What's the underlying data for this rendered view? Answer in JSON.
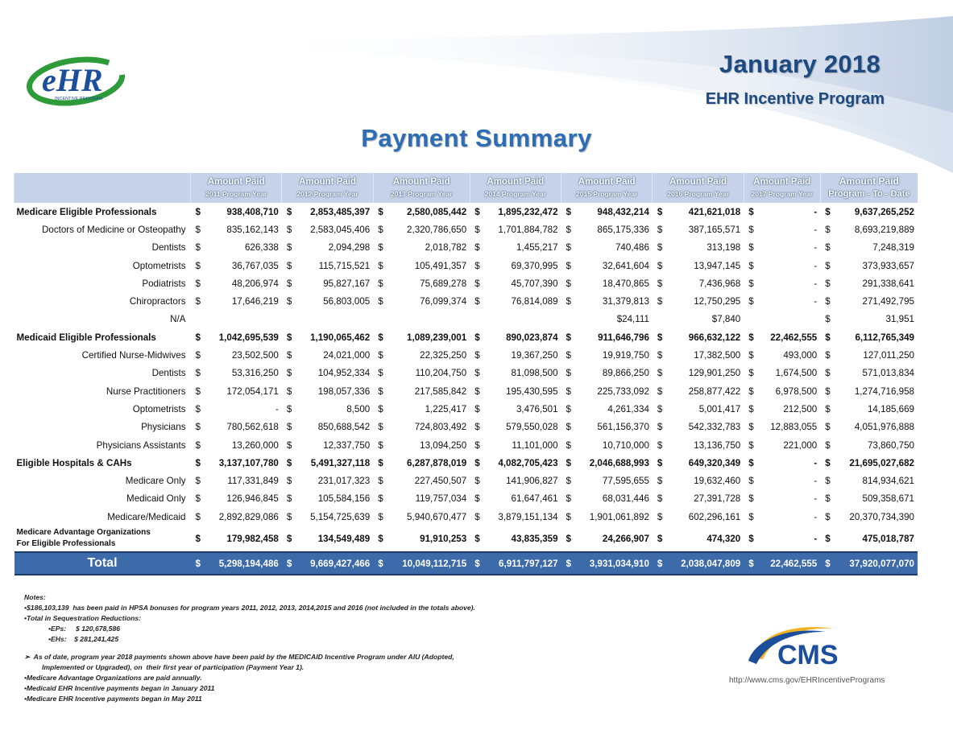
{
  "header": {
    "logo_text": "eHR",
    "logo_subtext": "INCENTIVE PROGRAM",
    "month": "January 2018",
    "program": "EHR Incentive Program",
    "title": "Payment Summary"
  },
  "columns": [
    {
      "label": "Amount Paid",
      "sub": "2011 Program Year"
    },
    {
      "label": "Amount Paid",
      "sub": "2012 Program Year"
    },
    {
      "label": "Amount Paid",
      "sub": "2013 Program Year"
    },
    {
      "label": "Amount Paid",
      "sub": "2014 Program Year"
    },
    {
      "label": "Amount Paid",
      "sub": "2015 Program Year"
    },
    {
      "label": "Amount Paid",
      "sub": "2016 Program Year"
    },
    {
      "label": "Amount Paid",
      "sub": "2017 Program Year"
    },
    {
      "label": "Amount Paid",
      "sub": "Program - To - Date"
    }
  ],
  "rows": [
    {
      "type": "section",
      "label": "Medicare Eligible Professionals",
      "values": [
        "938,408,710",
        "2,853,485,397",
        "2,580,085,442",
        "1,895,232,472",
        "948,432,214",
        "421,621,018",
        "-",
        "9,637,265,252"
      ],
      "dollars": [
        true,
        true,
        true,
        true,
        true,
        true,
        true,
        true
      ]
    },
    {
      "type": "item",
      "label": "Doctors of Medicine or Osteopathy",
      "values": [
        "835,162,143",
        "2,583,045,406",
        "2,320,786,650",
        "1,701,884,782",
        "865,175,336",
        "387,165,571",
        "-",
        "8,693,219,889"
      ],
      "dollars": [
        true,
        true,
        true,
        true,
        true,
        true,
        true,
        true
      ]
    },
    {
      "type": "item",
      "label": "Dentists",
      "values": [
        "626,338",
        "2,094,298",
        "2,018,782",
        "1,455,217",
        "740,486",
        "313,198",
        "-",
        "7,248,319"
      ],
      "dollars": [
        true,
        true,
        true,
        true,
        true,
        true,
        true,
        true
      ]
    },
    {
      "type": "item",
      "label": "Optometrists",
      "values": [
        "36,767,035",
        "115,715,521",
        "105,491,357",
        "69,370,995",
        "32,641,604",
        "13,947,145",
        "-",
        "373,933,657"
      ],
      "dollars": [
        true,
        true,
        true,
        true,
        true,
        true,
        true,
        true
      ]
    },
    {
      "type": "item",
      "label": "Podiatrists",
      "values": [
        "48,206,974",
        "95,827,167",
        "75,689,278",
        "45,707,390",
        "18,470,865",
        "7,436,968",
        "-",
        "291,338,641"
      ],
      "dollars": [
        true,
        true,
        true,
        true,
        true,
        true,
        true,
        true
      ]
    },
    {
      "type": "item",
      "label": "Chiropractors",
      "values": [
        "17,646,219",
        "56,803,005",
        "76,099,374",
        "76,814,089",
        "31,379,813",
        "12,750,295",
        "-",
        "271,492,795"
      ],
      "dollars": [
        true,
        true,
        true,
        true,
        true,
        true,
        true,
        true
      ]
    },
    {
      "type": "item",
      "label": "N/A",
      "values": [
        "",
        "",
        "",
        "",
        "$24,111",
        "$7,840",
        "",
        "31,951"
      ],
      "dollars": [
        false,
        false,
        false,
        false,
        false,
        false,
        false,
        true
      ]
    },
    {
      "type": "section",
      "label": "Medicaid Eligible Professionals",
      "values": [
        "1,042,695,539",
        "1,190,065,462",
        "1,089,239,001",
        "890,023,874",
        "911,646,796",
        "966,632,122",
        "22,462,555",
        "6,112,765,349"
      ],
      "dollars": [
        true,
        true,
        true,
        true,
        true,
        true,
        true,
        true
      ]
    },
    {
      "type": "item",
      "label": "Certified Nurse-Midwives",
      "values": [
        "23,502,500",
        "24,021,000",
        "22,325,250",
        "19,367,250",
        "19,919,750",
        "17,382,500",
        "493,000",
        "127,011,250"
      ],
      "dollars": [
        true,
        true,
        true,
        true,
        true,
        true,
        true,
        true
      ]
    },
    {
      "type": "item",
      "label": "Dentists",
      "values": [
        "53,316,250",
        "104,952,334",
        "110,204,750",
        "81,098,500",
        "89,866,250",
        "129,901,250",
        "1,674,500",
        "571,013,834"
      ],
      "dollars": [
        true,
        true,
        true,
        true,
        true,
        true,
        true,
        true
      ]
    },
    {
      "type": "item",
      "label": "Nurse Practitioners",
      "values": [
        "172,054,171",
        "198,057,336",
        "217,585,842",
        "195,430,595",
        "225,733,092",
        "258,877,422",
        "6,978,500",
        "1,274,716,958"
      ],
      "dollars": [
        true,
        true,
        true,
        true,
        true,
        true,
        true,
        true
      ]
    },
    {
      "type": "item",
      "label": "Optometrists",
      "values": [
        "-",
        "8,500",
        "1,225,417",
        "3,476,501",
        "4,261,334",
        "5,001,417",
        "212,500",
        "14,185,669"
      ],
      "dollars": [
        true,
        true,
        true,
        true,
        true,
        true,
        true,
        true
      ]
    },
    {
      "type": "item",
      "label": "Physicians",
      "values": [
        "780,562,618",
        "850,688,542",
        "724,803,492",
        "579,550,028",
        "561,156,370",
        "542,332,783",
        "12,883,055",
        "4,051,976,888"
      ],
      "dollars": [
        true,
        true,
        true,
        true,
        true,
        true,
        true,
        true
      ]
    },
    {
      "type": "item",
      "label": "Physicians Assistants",
      "values": [
        "13,260,000",
        "12,337,750",
        "13,094,250",
        "11,101,000",
        "10,710,000",
        "13,136,750",
        "221,000",
        "73,860,750"
      ],
      "dollars": [
        true,
        true,
        true,
        true,
        true,
        true,
        true,
        true
      ]
    },
    {
      "type": "section",
      "label": "Eligible Hospitals & CAHs",
      "values": [
        "3,137,107,780",
        "5,491,327,118",
        "6,287,878,019",
        "4,082,705,423",
        "2,046,688,993",
        "649,320,349",
        "-",
        "21,695,027,682"
      ],
      "dollars": [
        true,
        true,
        true,
        true,
        true,
        true,
        true,
        true
      ]
    },
    {
      "type": "item",
      "label": "Medicare Only",
      "values": [
        "117,331,849",
        "231,017,323",
        "227,450,507",
        "141,906,827",
        "77,595,655",
        "19,632,460",
        "-",
        "814,934,621"
      ],
      "dollars": [
        true,
        true,
        true,
        true,
        true,
        true,
        true,
        true
      ]
    },
    {
      "type": "item",
      "label": "Medicaid Only",
      "values": [
        "126,946,845",
        "105,584,156",
        "119,757,034",
        "61,647,461",
        "68,031,446",
        "27,391,728",
        "-",
        "509,358,671"
      ],
      "dollars": [
        true,
        true,
        true,
        true,
        true,
        true,
        true,
        true
      ]
    },
    {
      "type": "item",
      "label": "Medicare/Medicaid",
      "values": [
        "2,892,829,086",
        "5,154,725,639",
        "5,940,670,477",
        "3,879,151,134",
        "1,901,061,892",
        "602,296,161",
        "-",
        "20,370,734,390"
      ],
      "dollars": [
        true,
        true,
        true,
        true,
        true,
        true,
        true,
        true
      ]
    },
    {
      "type": "mao",
      "label": "Medicare Advantage Organizations",
      "label2": "For Eligible Professionals",
      "values": [
        "179,982,458",
        "134,549,489",
        "91,910,253",
        "43,835,359",
        "24,266,907",
        "474,320",
        "-",
        "475,018,787"
      ],
      "dollars": [
        true,
        true,
        true,
        true,
        true,
        true,
        true,
        true
      ]
    },
    {
      "type": "total",
      "label": "Total",
      "values": [
        "5,298,194,486",
        "9,669,427,466",
        "10,049,112,715",
        "6,911,797,127",
        "3,931,034,910",
        "2,038,047,809",
        "22,462,555",
        "37,920,077,070"
      ],
      "dollars": [
        true,
        true,
        true,
        true,
        true,
        true,
        true,
        true
      ]
    }
  ],
  "dollar_sign": "$",
  "notes": {
    "heading": "Notes:",
    "hpsa": "•$186,103,139  has been paid in HPSA bonuses for program years 2011, 2012, 2013, 2014,2015 and 2016 (not included in the totals above).",
    "seq_heading": "•Total in Sequestration Reductions:",
    "eps": "•EPs:     $ 120,678,586",
    "ehs": "•EHs:    $ 281,241,425",
    "aiu_line1": "➢  As of date, program year 2018 payments shown above have been paid by the MEDICAID Incentive Program under AIU (Adopted,",
    "aiu_line2": "Implemented or Upgraded), on  their first year of participation (Payment Year 1).",
    "mao_annual": "•Medicare Advantage Organizations are paid annually.",
    "medicaid_began": "•Medicaid EHR Incentive payments began in January 2011",
    "medicare_began": "•Medicare EHR Incentive payments began in May 2011"
  },
  "footer": {
    "cms_logo_text": "CMS",
    "url": "http://www.cms.gov/EHRIncentivePrograms"
  },
  "colors": {
    "title_dark": "#1d4a80",
    "title_main": "#2d6db5",
    "header_bg": "#c5d2e9",
    "total_bg": "#3d6aa8",
    "logo_green": "#2e9b3a",
    "logo_blue": "#1b4f9c"
  }
}
